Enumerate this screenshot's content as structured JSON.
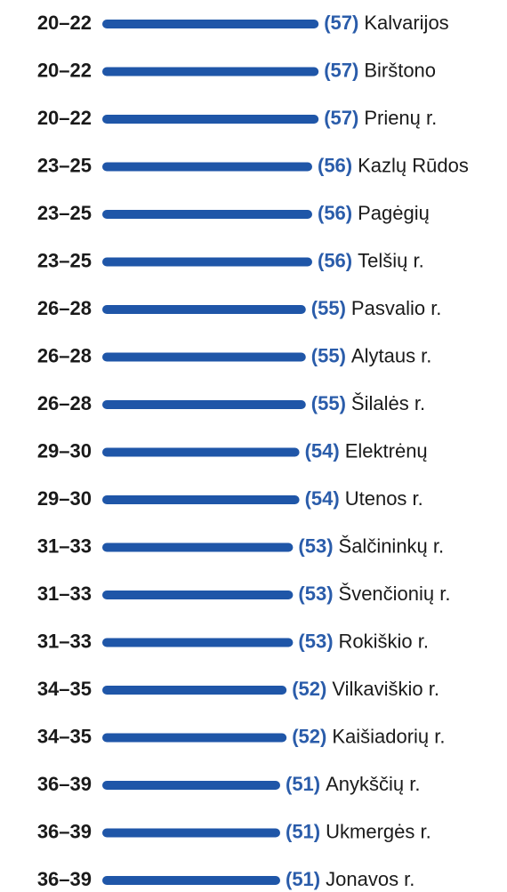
{
  "chart_data": {
    "type": "bar",
    "orientation": "horizontal",
    "color": "#1f56a8",
    "label_color": "#2a5caa",
    "ranks": [
      "20–22",
      "20–22",
      "20–22",
      "23–25",
      "23–25",
      "23–25",
      "26–28",
      "26–28",
      "26–28",
      "29–30",
      "29–30",
      "31–33",
      "31–33",
      "31–33",
      "34–35",
      "34–35",
      "36–39",
      "36–39",
      "36–39"
    ],
    "categories": [
      "Kalvarijos",
      "Birštono",
      "Prienų r.",
      "Kazlų Rūdos",
      "Pagėgių",
      "Telšių r.",
      "Pasvalio r.",
      "Alytaus r.",
      "Šilalės r.",
      "Elektrėnų",
      "Utenos r.",
      "Šalčininkų r.",
      "Švenčionių r.",
      "Rokiškio r.",
      "Vilkaviškio r.",
      "Kaišiadorių r.",
      "Anykščių r.",
      "Ukmergės r.",
      "Jonavos r."
    ],
    "values": [
      57,
      57,
      57,
      56,
      56,
      56,
      55,
      55,
      55,
      54,
      54,
      53,
      53,
      53,
      52,
      52,
      51,
      51,
      51
    ],
    "value_labels": [
      "(57)",
      "(57)",
      "(57)",
      "(56)",
      "(56)",
      "(56)",
      "(55)",
      "(55)",
      "(55)",
      "(54)",
      "(54)",
      "(53)",
      "(53)",
      "(53)",
      "(52)",
      "(52)",
      "(51)",
      "(51)",
      "(51)"
    ]
  }
}
